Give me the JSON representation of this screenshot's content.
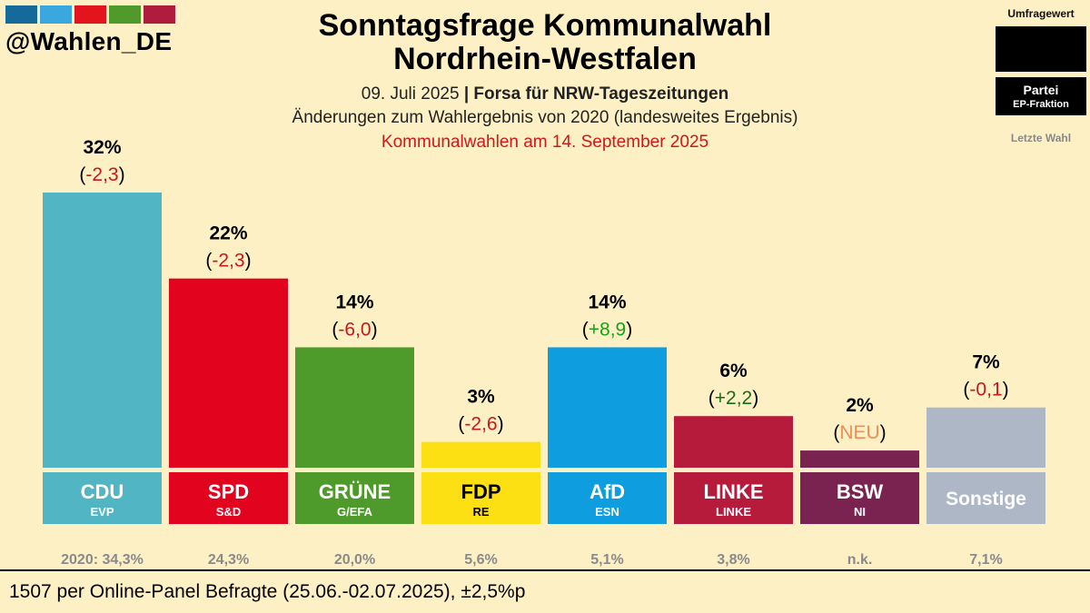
{
  "brand": {
    "handle": "@Wahlen_DE",
    "stripe_colors": [
      "#156a9b",
      "#3aa8df",
      "#e2141e",
      "#4f9a2a",
      "#b01c3d"
    ]
  },
  "header": {
    "title_line1": "Sonntagsfrage Kommunalwahl",
    "title_line2": "Nordrhein-Westfalen",
    "date": "09. Juli 2025",
    "separator": "|",
    "institute": "Forsa für NRW-Tageszeitungen",
    "changes_note": "Änderungen zum Wahlergebnis von 2020 (landesweites Ergebnis)",
    "election_date": "Kommunalwahlen am 14. September 2025"
  },
  "legend": {
    "poll_value_label": "Umfragewert",
    "party_label": "Partei",
    "faction_label": "EP-Fraktion",
    "last_election_label": "Letzte Wahl"
  },
  "chart_data": {
    "type": "bar",
    "title": "Sonntagsfrage Kommunalwahl Nordrhein-Westfalen",
    "categories": [
      "CDU",
      "SPD",
      "GRÜNE",
      "FDP",
      "AfD",
      "LINKE",
      "BSW",
      "Sonstige"
    ],
    "values": [
      32,
      22,
      14,
      3,
      14,
      6,
      2,
      7
    ],
    "value_labels": [
      "32%",
      "22%",
      "14%",
      "3%",
      "14%",
      "6%",
      "2%",
      "7%"
    ],
    "changes": [
      "-2,3",
      "-2,3",
      "-6,0",
      "-2,6",
      "+8,9",
      "+2,2",
      "NEU",
      "-0,1"
    ],
    "factions": [
      "EVP",
      "S&D",
      "G/EFA",
      "RE",
      "ESN",
      "LINKE",
      "NI",
      ""
    ],
    "last_election": [
      "2020: 34,3%",
      "24,3%",
      "20,0%",
      "5,6%",
      "5,1%",
      "3,8%",
      "n.k.",
      "7,1%"
    ],
    "colors": [
      "#52b5c4",
      "#e2031e",
      "#4e9a2b",
      "#fce014",
      "#0e9ee0",
      "#b61b3c",
      "#7a2350",
      "#adb7c6"
    ],
    "label_text_colors": [
      "#ffffff",
      "#ffffff",
      "#ffffff",
      "#000000",
      "#ffffff",
      "#ffffff",
      "#ffffff",
      "#ffffff"
    ],
    "change_colors": [
      "#c8171a",
      "#c8171a",
      "#c8171a",
      "#c8171a",
      "#17a317",
      "#1a6b1a",
      "#f08c55",
      "#c8171a"
    ],
    "ylim": [
      0,
      32
    ]
  },
  "footer": {
    "sample_note": "1507 per Online-Panel Befragte (25.06.-02.07.2025), ±2,5%p"
  }
}
